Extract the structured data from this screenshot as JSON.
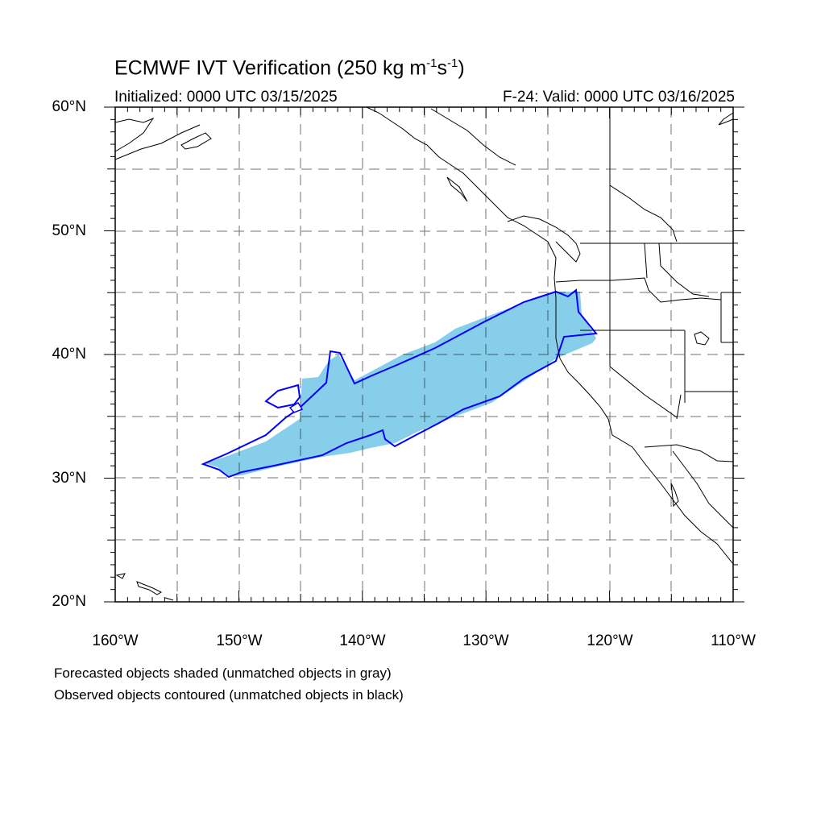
{
  "header": {
    "title_main": "ECMWF IVT Verification (250 kg m",
    "title_exp1": "-1",
    "title_mid": "s",
    "title_exp2": "-1",
    "title_end": ")",
    "initialized": "Initialized: 0000 UTC 03/15/2025",
    "valid": "F-24: Valid: 0000 UTC 03/16/2025"
  },
  "axes": {
    "lat_labels": [
      "60°N",
      "50°N",
      "40°N",
      "30°N",
      "20°N"
    ],
    "lon_labels": [
      "160°W",
      "150°W",
      "140°W",
      "130°W",
      "120°W",
      "110°W"
    ]
  },
  "legend": {
    "line1": "Forecasted objects shaded (unmatched objects in gray)",
    "line2": "Observed objects contoured (unmatched objects in black)"
  },
  "colors": {
    "forecast_fill": "#87ceeb",
    "observed_contour": "#0000ff",
    "grid": "#000000",
    "coast": "#000000"
  }
}
